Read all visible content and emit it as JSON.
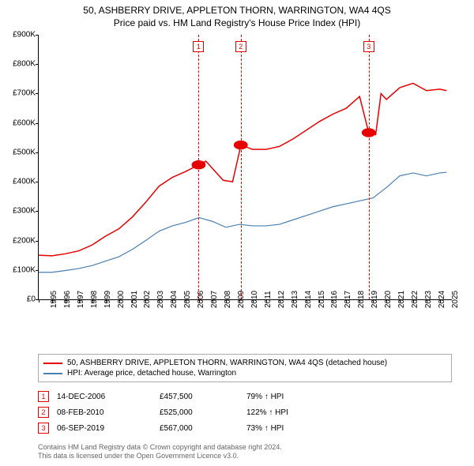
{
  "title_line1": "50, ASHBERRY DRIVE, APPLETON THORN, WARRINGTON, WA4 4QS",
  "title_line2": "Price paid vs. HM Land Registry's House Price Index (HPI)",
  "chart": {
    "type": "line",
    "xlim": [
      1995,
      2025.9
    ],
    "ylim": [
      0,
      900000
    ],
    "y_ticks": [
      0,
      100000,
      200000,
      300000,
      400000,
      500000,
      600000,
      700000,
      800000,
      900000
    ],
    "y_tick_labels": [
      "£0",
      "£100K",
      "£200K",
      "£300K",
      "£400K",
      "£500K",
      "£600K",
      "£700K",
      "£800K",
      "£900K"
    ],
    "x_ticks": [
      1995,
      1996,
      1997,
      1998,
      1999,
      2000,
      2001,
      2002,
      2003,
      2004,
      2005,
      2006,
      2007,
      2008,
      2009,
      2010,
      2011,
      2012,
      2013,
      2014,
      2015,
      2016,
      2017,
      2018,
      2019,
      2020,
      2021,
      2022,
      2023,
      2024,
      2025
    ],
    "background_color": "#ffffff",
    "axis_color": "#000000",
    "tick_fontsize": 10,
    "series": [
      {
        "name": "price_paid",
        "label": "50, ASHBERRY DRIVE, APPLETON THORN, WARRINGTON, WA4 4QS (detached house)",
        "color": "#e60000",
        "line_width": 1.5,
        "data": [
          [
            1995.0,
            150000
          ],
          [
            1996.0,
            148000
          ],
          [
            1997.0,
            155000
          ],
          [
            1998.0,
            165000
          ],
          [
            1999.0,
            185000
          ],
          [
            2000.0,
            215000
          ],
          [
            2001.0,
            240000
          ],
          [
            2002.0,
            280000
          ],
          [
            2003.0,
            330000
          ],
          [
            2004.0,
            385000
          ],
          [
            2005.0,
            415000
          ],
          [
            2006.0,
            435000
          ],
          [
            2006.96,
            457500
          ],
          [
            2007.5,
            470000
          ],
          [
            2008.0,
            445000
          ],
          [
            2008.8,
            405000
          ],
          [
            2009.5,
            400000
          ],
          [
            2010.0,
            500000
          ],
          [
            2010.11,
            525000
          ],
          [
            2011.0,
            510000
          ],
          [
            2012.0,
            510000
          ],
          [
            2013.0,
            520000
          ],
          [
            2014.0,
            545000
          ],
          [
            2015.0,
            575000
          ],
          [
            2016.0,
            605000
          ],
          [
            2017.0,
            630000
          ],
          [
            2018.0,
            650000
          ],
          [
            2019.0,
            690000
          ],
          [
            2019.68,
            567000
          ],
          [
            2020.2,
            560000
          ],
          [
            2020.6,
            700000
          ],
          [
            2021.0,
            680000
          ],
          [
            2022.0,
            720000
          ],
          [
            2023.0,
            735000
          ],
          [
            2024.0,
            710000
          ],
          [
            2025.0,
            715000
          ],
          [
            2025.5,
            710000
          ]
        ]
      },
      {
        "name": "hpi",
        "label": "HPI: Average price, detached house, Warrington",
        "color": "#4a7fb0",
        "line_width": 1.2,
        "data": [
          [
            1995.0,
            92000
          ],
          [
            1996.0,
            92000
          ],
          [
            1997.0,
            98000
          ],
          [
            1998.0,
            105000
          ],
          [
            1999.0,
            115000
          ],
          [
            2000.0,
            130000
          ],
          [
            2001.0,
            145000
          ],
          [
            2002.0,
            170000
          ],
          [
            2003.0,
            200000
          ],
          [
            2004.0,
            232000
          ],
          [
            2005.0,
            250000
          ],
          [
            2006.0,
            262000
          ],
          [
            2007.0,
            278000
          ],
          [
            2008.0,
            265000
          ],
          [
            2009.0,
            245000
          ],
          [
            2010.0,
            255000
          ],
          [
            2011.0,
            250000
          ],
          [
            2012.0,
            250000
          ],
          [
            2013.0,
            255000
          ],
          [
            2014.0,
            270000
          ],
          [
            2015.0,
            285000
          ],
          [
            2016.0,
            300000
          ],
          [
            2017.0,
            315000
          ],
          [
            2018.0,
            325000
          ],
          [
            2019.0,
            335000
          ],
          [
            2020.0,
            345000
          ],
          [
            2021.0,
            380000
          ],
          [
            2022.0,
            420000
          ],
          [
            2023.0,
            430000
          ],
          [
            2024.0,
            420000
          ],
          [
            2025.0,
            430000
          ],
          [
            2025.5,
            432000
          ]
        ]
      }
    ],
    "sale_points": [
      {
        "num": "1",
        "x": 2006.96,
        "y": 457500,
        "color": "#e60000"
      },
      {
        "num": "2",
        "x": 2010.11,
        "y": 525000,
        "color": "#e60000"
      },
      {
        "num": "3",
        "x": 2019.68,
        "y": 567000,
        "color": "#e60000"
      }
    ],
    "vline_color": "#e60000",
    "marker_box_top_offset": 8
  },
  "legend": {
    "rows": [
      {
        "color": "#e60000",
        "label": "50, ASHBERRY DRIVE, APPLETON THORN, WARRINGTON, WA4 4QS (detached house)"
      },
      {
        "color": "#4a7fb0",
        "label": "HPI: Average price, detached house, Warrington"
      }
    ]
  },
  "events": [
    {
      "num": "1",
      "color": "#e60000",
      "date": "14-DEC-2006",
      "price": "£457,500",
      "pct": "79% ↑ HPI"
    },
    {
      "num": "2",
      "color": "#e60000",
      "date": "08-FEB-2010",
      "price": "£525,000",
      "pct": "122% ↑ HPI"
    },
    {
      "num": "3",
      "color": "#e60000",
      "date": "06-SEP-2019",
      "price": "£567,000",
      "pct": "73% ↑ HPI"
    }
  ],
  "footer_line1": "Contains HM Land Registry data © Crown copyright and database right 2024.",
  "footer_line2": "This data is licensed under the Open Government Licence v3.0."
}
